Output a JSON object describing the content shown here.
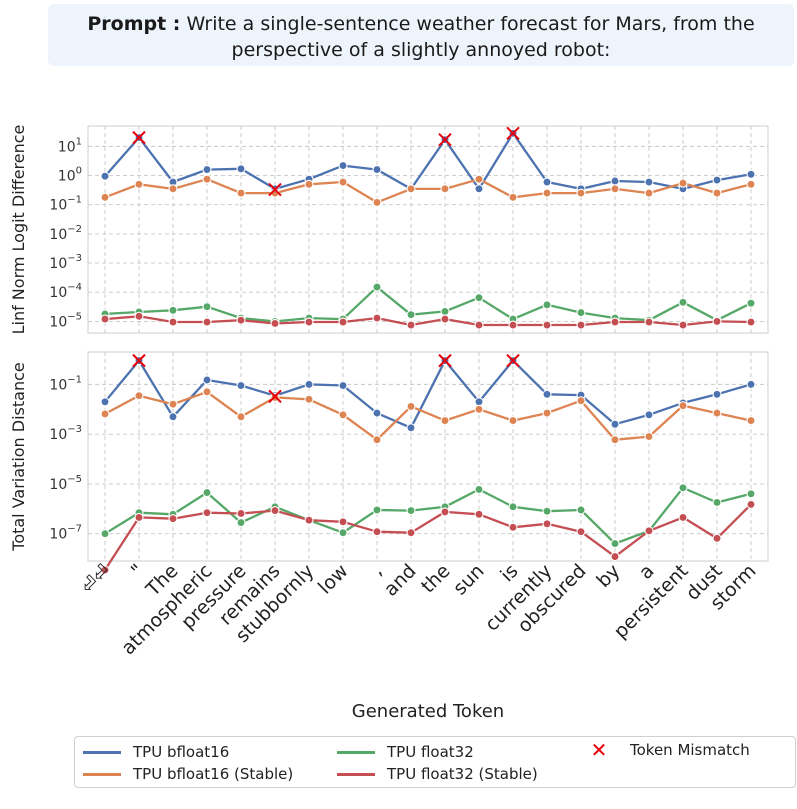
{
  "prompt": {
    "label": "Prompt :",
    "line1": "Write a single-sentence weather forecast for Mars, from the",
    "line2": "perspective of a slightly annoyed robot:"
  },
  "chart_data": {
    "type": "line",
    "xlabel": "Generated Token",
    "categories": [
      "⏎⏎",
      "\"",
      "The",
      "atmospheric",
      "pressure",
      "remains",
      "stubbornly",
      "low",
      ",",
      "and",
      "the",
      "sun",
      "is",
      "currently",
      "obscured",
      "by",
      "a",
      "persistent",
      "dust",
      "storm"
    ],
    "mismatch_label": "Token Mismatch",
    "colors": {
      "TPU bfloat16": "#4c72b0",
      "TPU bfloat16 (Stable)": "#dd8452",
      "TPU float32": "#55a868",
      "TPU float32 (Stable)": "#c44e52",
      "Token Mismatch": "#e8000b"
    },
    "panels": [
      {
        "ylabel": "Linf Norm Logit Difference",
        "scale": "log",
        "ylim": [
          4e-06,
          50
        ],
        "yticks": [
          {
            "value": 10,
            "base": "10",
            "exp": "1"
          },
          {
            "value": 1,
            "base": "10",
            "exp": "0"
          },
          {
            "value": 0.1,
            "base": "10",
            "exp": "−1"
          },
          {
            "value": 0.01,
            "base": "10",
            "exp": "−2"
          },
          {
            "value": 0.001,
            "base": "10",
            "exp": "−3"
          },
          {
            "value": 0.0001,
            "base": "10",
            "exp": "−4"
          },
          {
            "value": 1e-05,
            "base": "10",
            "exp": "−5"
          }
        ],
        "series": [
          {
            "name": "TPU bfloat16",
            "values": [
              0.95,
              20,
              0.6,
              1.6,
              1.7,
              0.35,
              0.75,
              2.2,
              1.6,
              0.35,
              17,
              0.35,
              28,
              0.6,
              0.35,
              0.65,
              0.6,
              0.35,
              0.7,
              1.1
            ]
          },
          {
            "name": "TPU bfloat16 (Stable)",
            "values": [
              0.18,
              0.5,
              0.35,
              0.75,
              0.25,
              0.25,
              0.5,
              0.6,
              0.12,
              0.35,
              0.35,
              0.75,
              0.18,
              0.25,
              0.25,
              0.35,
              0.25,
              0.55,
              0.25,
              0.5
            ]
          },
          {
            "name": "TPU float32",
            "values": [
              1.8e-05,
              2.1e-05,
              2.4e-05,
              3.2e-05,
              1.3e-05,
              1e-05,
              1.3e-05,
              1.2e-05,
              0.00015,
              1.7e-05,
              2.2e-05,
              6.5e-05,
              1.2e-05,
              3.7e-05,
              2e-05,
              1.3e-05,
              1.1e-05,
              4.5e-05,
              1.1e-05,
              4.2e-05
            ]
          },
          {
            "name": "TPU float32 (Stable)",
            "values": [
              1.2e-05,
              1.5e-05,
              9.5e-06,
              9.5e-06,
              1.1e-05,
              8.5e-06,
              9.5e-06,
              9.5e-06,
              1.3e-05,
              7.5e-06,
              1.2e-05,
              7.5e-06,
              7.5e-06,
              7.5e-06,
              7.5e-06,
              9.5e-06,
              9.5e-06,
              7.5e-06,
              1e-05,
              9.5e-06
            ]
          }
        ],
        "mismatches": [
          {
            "index": 1,
            "value": 20
          },
          {
            "index": 5,
            "value": 0.33
          },
          {
            "index": 10,
            "value": 17
          },
          {
            "index": 12,
            "value": 28
          }
        ]
      },
      {
        "ylabel": "Total Variation Distance",
        "scale": "log",
        "ylim": [
          8e-09,
          2
        ],
        "yticks": [
          {
            "value": 0.1,
            "base": "10",
            "exp": "−1"
          },
          {
            "value": 0.001,
            "base": "10",
            "exp": "−3"
          },
          {
            "value": 1e-05,
            "base": "10",
            "exp": "−5"
          },
          {
            "value": 1e-07,
            "base": "10",
            "exp": "−7"
          }
        ],
        "series": [
          {
            "name": "TPU bfloat16",
            "values": [
              0.02,
              0.9,
              0.005,
              0.15,
              0.09,
              0.035,
              0.1,
              0.09,
              0.007,
              0.0018,
              0.9,
              0.02,
              0.9,
              0.04,
              0.037,
              0.0025,
              0.006,
              0.018,
              0.04,
              0.1
            ]
          },
          {
            "name": "TPU bfloat16 (Stable)",
            "values": [
              0.0065,
              0.035,
              0.016,
              0.05,
              0.005,
              0.03,
              0.025,
              0.006,
              0.0006,
              0.013,
              0.0035,
              0.01,
              0.0035,
              0.007,
              0.022,
              0.0006,
              0.0008,
              0.014,
              0.007,
              0.0035
            ]
          },
          {
            "name": "TPU float32",
            "values": [
              1e-07,
              7e-07,
              6e-07,
              4.5e-06,
              2.8e-07,
              1.2e-06,
              3.5e-07,
              1.1e-07,
              9e-07,
              8.5e-07,
              1.2e-06,
              6e-06,
              1.2e-06,
              8e-07,
              9e-07,
              4e-08,
              1.3e-07,
              7e-06,
              1.8e-06,
              4e-06
            ]
          },
          {
            "name": "TPU float32 (Stable)",
            "values": [
              3.5e-09,
              4.5e-07,
              4e-07,
              7e-07,
              6.5e-07,
              8.5e-07,
              3.5e-07,
              3e-07,
              1.2e-07,
              1.1e-07,
              7.5e-07,
              6e-07,
              1.8e-07,
              2.5e-07,
              1.2e-07,
              1.2e-08,
              1.3e-07,
              4.5e-07,
              6.5e-08,
              1.5e-06
            ]
          }
        ],
        "mismatches": [
          {
            "index": 1,
            "value": 0.9
          },
          {
            "index": 5,
            "value": 0.033
          },
          {
            "index": 10,
            "value": 0.9
          },
          {
            "index": 12,
            "value": 0.9
          }
        ]
      }
    ],
    "legend": {
      "placement": "bottom",
      "entries": [
        "TPU bfloat16",
        "TPU bfloat16 (Stable)",
        "TPU float32",
        "TPU float32 (Stable)",
        "Token Mismatch"
      ]
    }
  }
}
